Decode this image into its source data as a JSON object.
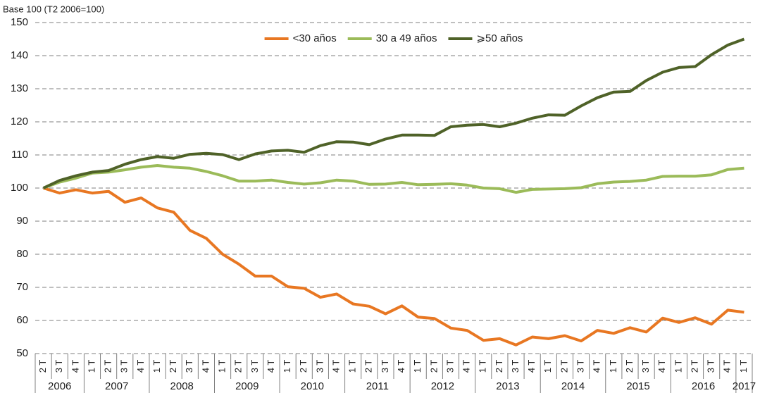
{
  "chart_data": {
    "type": "line",
    "ylabel": "Base 100 (T2 2006=100)",
    "categories": [
      "2 T",
      "3 T",
      "4 T",
      "1 T",
      "2 T",
      "3 T",
      "4 T",
      "1 T",
      "2 T",
      "3 T",
      "4 T",
      "1 T",
      "2 T",
      "3 T",
      "4 T",
      "1 T",
      "2 T",
      "3 T",
      "4 T",
      "1 T",
      "2 T",
      "3 T",
      "4 T",
      "1 T",
      "2 T",
      "3 T",
      "4 T",
      "1 T",
      "2 T",
      "3 T",
      "4 T",
      "1 T",
      "2 T",
      "3 T",
      "4 T",
      "1 T",
      "2 T",
      "3 T",
      "4 T",
      "1 T",
      "2 T",
      "3 T",
      "4 T",
      "1 T"
    ],
    "years": [
      "2006",
      "2007",
      "2008",
      "2009",
      "2010",
      "2011",
      "2012",
      "2013",
      "2014",
      "2015",
      "2016",
      "2017"
    ],
    "series": [
      {
        "name": "<30 años",
        "color": "#e87722",
        "values": [
          100,
          98.5,
          99.5,
          98.5,
          99,
          95.7,
          97,
          94,
          92.7,
          87.2,
          84.8,
          80,
          77,
          73.4,
          73.4,
          70.2,
          69.7,
          67,
          68,
          65,
          64.3,
          62,
          64.4,
          61,
          60.6,
          57.7,
          57,
          54,
          54.5,
          52.6,
          55,
          54.5,
          55.4,
          53.8,
          57,
          56.1,
          57.8,
          56.5,
          60.7,
          59.4,
          60.8,
          58.9,
          63.1,
          62.5
        ]
      },
      {
        "name": "30 a 49 años",
        "color": "#9bbb59",
        "values": [
          100,
          101.8,
          103,
          104.5,
          104.8,
          105.5,
          106.3,
          106.8,
          106.3,
          106,
          105,
          103.7,
          102.1,
          102.1,
          102.4,
          101.7,
          101.2,
          101.6,
          102.4,
          102.1,
          101.1,
          101.2,
          101.7,
          101,
          101.1,
          101.3,
          100.9,
          100,
          99.8,
          98.7,
          99.6,
          99.7,
          99.8,
          100.1,
          101.3,
          101.8,
          102,
          102.4,
          103.5,
          103.6,
          103.6,
          104,
          105.6,
          106
        ]
      },
      {
        "name": "⩾50 años",
        "color": "#4f6228",
        "values": [
          100,
          102.3,
          103.7,
          104.8,
          105.3,
          107.2,
          108.6,
          109.5,
          109,
          110.2,
          110.5,
          110.1,
          108.6,
          110.3,
          111.2,
          111.4,
          110.8,
          112.8,
          114,
          113.9,
          113.1,
          114.8,
          116,
          116,
          115.9,
          118.5,
          119,
          119.2,
          118.5,
          119.6,
          121.1,
          122.1,
          122,
          124.8,
          127.3,
          129,
          129.2,
          132.5,
          135,
          136.4,
          136.7,
          140.3,
          143.2,
          145
        ]
      }
    ],
    "ylim": [
      50,
      150
    ],
    "yticks": [
      50,
      60,
      70,
      80,
      90,
      100,
      110,
      120,
      130,
      140,
      150
    ],
    "grid": true,
    "legend": "top"
  }
}
